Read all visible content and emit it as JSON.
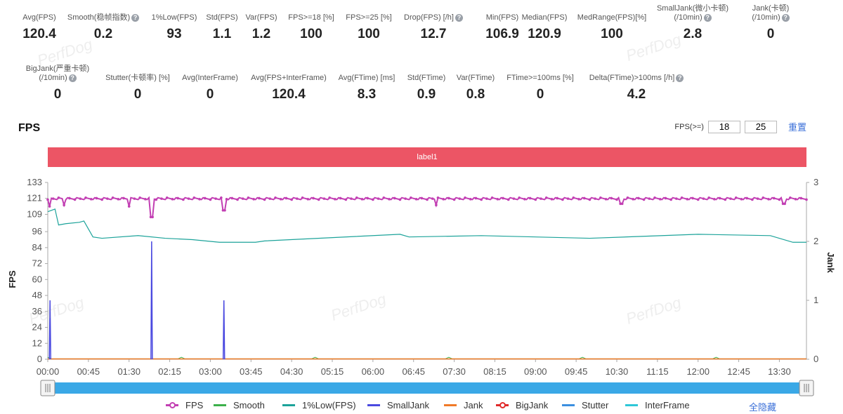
{
  "stats_row1": [
    {
      "label": "Avg(FPS)",
      "value": "120.4",
      "help": false
    },
    {
      "label": "Smooth(稳帧指数)",
      "value": "0.2",
      "help": true
    },
    {
      "label": "1%Low(FPS)",
      "value": "93",
      "help": false
    },
    {
      "label": "Std(FPS)",
      "value": "1.1",
      "help": false
    },
    {
      "label": "Var(FPS)",
      "value": "1.2",
      "help": false
    },
    {
      "label": "FPS>=18 [%]",
      "value": "100",
      "help": false
    },
    {
      "label": "FPS>=25 [%]",
      "value": "100",
      "help": false
    },
    {
      "label": "Drop(FPS) [/h]",
      "value": "12.7",
      "help": true
    },
    {
      "label": "Min(FPS)",
      "value": "106.9",
      "help": false
    },
    {
      "label": "Median(FPS)",
      "value": "120.9",
      "help": false
    },
    {
      "label": "MedRange(FPS)[%]",
      "value": "100",
      "help": false
    },
    {
      "label": "SmallJank(微小卡顿)",
      "label2": "(/10min)",
      "value": "2.8",
      "help": true
    },
    {
      "label": "Jank(卡顿)",
      "label2": "(/10min)",
      "value": "0",
      "help": true
    }
  ],
  "stats_row2": [
    {
      "label": "BigJank(严重卡顿)",
      "label2": "(/10min)",
      "value": "0",
      "help": true
    },
    {
      "label": "Stutter(卡顿率) [%]",
      "value": "0",
      "help": false
    },
    {
      "label": "Avg(InterFrame)",
      "value": "0",
      "help": false
    },
    {
      "label": "Avg(FPS+InterFrame)",
      "value": "120.4",
      "help": false
    },
    {
      "label": "Avg(FTime) [ms]",
      "value": "8.3",
      "help": false
    },
    {
      "label": "Std(FTime)",
      "value": "0.9",
      "help": false
    },
    {
      "label": "Var(FTime)",
      "value": "0.8",
      "help": false
    },
    {
      "label": "FTime>=100ms [%]",
      "value": "0",
      "help": false
    },
    {
      "label": "Delta(FTime)>100ms [/h]",
      "value": "4.2",
      "help": true
    }
  ],
  "section_title": "FPS",
  "threshold": {
    "label": "FPS(>=)",
    "value1": "18",
    "value2": "25",
    "reset": "重置"
  },
  "label_bar": "label1",
  "watermark": "PerfDog",
  "hide_all": "全隐藏",
  "colors": {
    "fps": "#c23fb3",
    "smooth": "#3cb04a",
    "low1": "#1ca39a",
    "smalljank": "#4a49e0",
    "jank": "#f07a28",
    "bigjank": "#e02a2a",
    "stutter": "#3b8fe0",
    "interframe": "#2ec7d8",
    "label_bar": "#ec5565",
    "slider": "#3aa8e6"
  },
  "chart_data": {
    "type": "line",
    "y_left": {
      "label": "FPS",
      "ticks": [
        0,
        12,
        24,
        36,
        48,
        60,
        72,
        84,
        96,
        109,
        121,
        133
      ],
      "range": [
        0,
        133
      ]
    },
    "y_right": {
      "label": "Jank",
      "ticks": [
        0,
        1,
        2,
        3
      ],
      "range": [
        0,
        3
      ]
    },
    "x": {
      "ticks": [
        "00:00",
        "00:45",
        "01:30",
        "02:15",
        "03:00",
        "03:45",
        "04:30",
        "05:15",
        "06:00",
        "06:45",
        "07:30",
        "08:15",
        "09:00",
        "09:45",
        "10:30",
        "11:15",
        "12:00",
        "12:45",
        "13:30"
      ],
      "range_seconds": [
        0,
        840
      ]
    },
    "legend": [
      "FPS",
      "Smooth",
      "1%Low(FPS)",
      "SmallJank",
      "Jank",
      "BigJank",
      "Stutter",
      "InterFrame"
    ],
    "series": [
      {
        "name": "FPS",
        "base": 120.8,
        "dips": [
          [
            5,
            115
          ],
          [
            37,
            116
          ],
          [
            180,
            115
          ],
          [
            230,
            107
          ],
          [
            390,
            112
          ],
          [
            860,
            116
          ],
          [
            1270,
            117
          ],
          [
            1630,
            117
          ]
        ]
      },
      {
        "name": "1%Low(FPS)",
        "points": [
          [
            0,
            111
          ],
          [
            8,
            113
          ],
          [
            12,
            101
          ],
          [
            20,
            102
          ],
          [
            35,
            103
          ],
          [
            40,
            104
          ],
          [
            50,
            92
          ],
          [
            60,
            91
          ],
          [
            100,
            93
          ],
          [
            130,
            91
          ],
          [
            160,
            90
          ],
          [
            190,
            88
          ],
          [
            230,
            88
          ],
          [
            240,
            89
          ],
          [
            390,
            94
          ],
          [
            400,
            92
          ],
          [
            480,
            93
          ],
          [
            600,
            91
          ],
          [
            720,
            94
          ],
          [
            800,
            93
          ],
          [
            825,
            88
          ],
          [
            840,
            88
          ]
        ]
      },
      {
        "name": "SmallJank",
        "spikes": [
          [
            5,
            1.0
          ],
          [
            230,
            2.0
          ],
          [
            390,
            1.0
          ]
        ]
      },
      {
        "name": "Smooth",
        "values_near_zero": true
      },
      {
        "name": "Jank",
        "values_near_zero": true
      },
      {
        "name": "BigJank",
        "values_near_zero": true
      },
      {
        "name": "Stutter",
        "values_near_zero": true
      },
      {
        "name": "InterFrame",
        "values_near_zero": true
      }
    ]
  }
}
